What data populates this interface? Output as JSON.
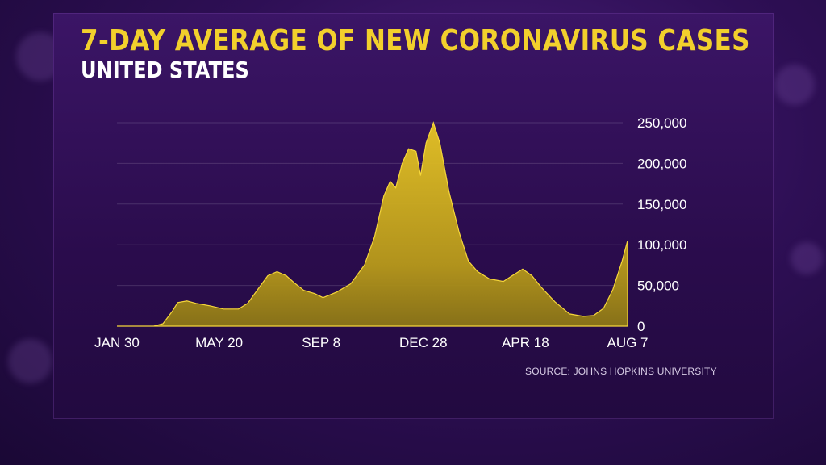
{
  "title": "7-DAY AVERAGE OF NEW CORONAVIRUS CASES",
  "subtitle": "UNITED STATES",
  "source": "SOURCE: JOHNS HOPKINS UNIVERSITY",
  "colors": {
    "area": "#d4b21e",
    "title": "#f2d02c",
    "background": "#2e0f55"
  },
  "chart_data": {
    "type": "area",
    "title": "7-DAY AVERAGE OF NEW CORONAVIRUS CASES",
    "subtitle": "UNITED STATES",
    "xlabel": "",
    "ylabel": "",
    "x_ticks": [
      "JAN 30",
      "MAY 20",
      "SEP 8",
      "DEC 28",
      "APR 18",
      "AUG 7"
    ],
    "y_ticks": [
      "0",
      "50,000",
      "100,000",
      "150,000",
      "200,000",
      "250,000"
    ],
    "ylim": [
      0,
      250000
    ],
    "x_range": [
      "2020-01-30",
      "2021-08-07"
    ],
    "grid": true,
    "legend": "none",
    "series": [
      {
        "values": [
          [
            "2020-01-30",
            0
          ],
          [
            "2020-03-10",
            0
          ],
          [
            "2020-03-20",
            3000
          ],
          [
            "2020-03-30",
            18000
          ],
          [
            "2020-04-05",
            29000
          ],
          [
            "2020-04-15",
            31000
          ],
          [
            "2020-04-25",
            28000
          ],
          [
            "2020-05-10",
            25000
          ],
          [
            "2020-05-25",
            21000
          ],
          [
            "2020-06-10",
            21000
          ],
          [
            "2020-06-20",
            28000
          ],
          [
            "2020-07-01",
            45000
          ],
          [
            "2020-07-12",
            62000
          ],
          [
            "2020-07-22",
            67000
          ],
          [
            "2020-08-01",
            62000
          ],
          [
            "2020-08-10",
            53000
          ],
          [
            "2020-08-20",
            44000
          ],
          [
            "2020-09-01",
            40000
          ],
          [
            "2020-09-10",
            35000
          ],
          [
            "2020-09-25",
            42000
          ],
          [
            "2020-10-10",
            52000
          ],
          [
            "2020-10-25",
            75000
          ],
          [
            "2020-11-05",
            110000
          ],
          [
            "2020-11-15",
            160000
          ],
          [
            "2020-11-22",
            178000
          ],
          [
            "2020-11-28",
            170000
          ],
          [
            "2020-12-05",
            200000
          ],
          [
            "2020-12-12",
            218000
          ],
          [
            "2020-12-20",
            215000
          ],
          [
            "2020-12-25",
            185000
          ],
          [
            "2020-12-31",
            225000
          ],
          [
            "2021-01-08",
            250000
          ],
          [
            "2021-01-15",
            225000
          ],
          [
            "2021-01-25",
            165000
          ],
          [
            "2021-02-05",
            115000
          ],
          [
            "2021-02-15",
            80000
          ],
          [
            "2021-02-25",
            67000
          ],
          [
            "2021-03-10",
            58000
          ],
          [
            "2021-03-25",
            55000
          ],
          [
            "2021-04-05",
            63000
          ],
          [
            "2021-04-15",
            70000
          ],
          [
            "2021-04-25",
            62000
          ],
          [
            "2021-05-05",
            48000
          ],
          [
            "2021-05-20",
            30000
          ],
          [
            "2021-06-05",
            15000
          ],
          [
            "2021-06-20",
            12000
          ],
          [
            "2021-07-01",
            13000
          ],
          [
            "2021-07-12",
            22000
          ],
          [
            "2021-07-22",
            45000
          ],
          [
            "2021-08-01",
            80000
          ],
          [
            "2021-08-07",
            105000
          ]
        ]
      }
    ]
  }
}
